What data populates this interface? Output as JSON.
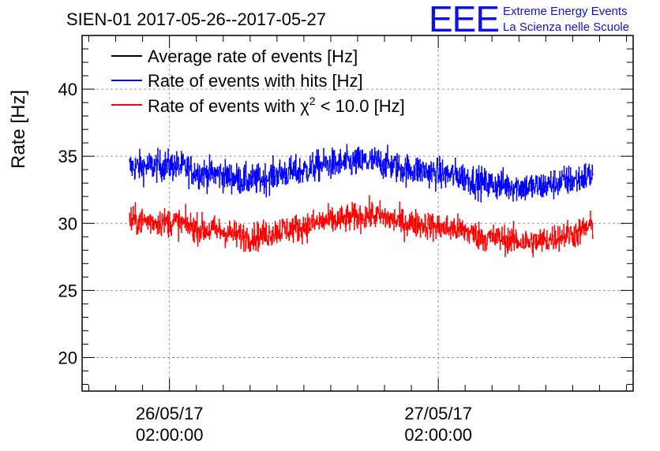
{
  "chart_data": {
    "type": "line",
    "title": "SIEN-01 2017-05-26--2017-05-27",
    "ylabel": "Rate [Hz]",
    "xlabel": "",
    "ylim": [
      17.5,
      44
    ],
    "yticks": [
      20,
      25,
      30,
      35,
      40
    ],
    "ytick_labels": [
      "20",
      "25",
      "30",
      "35",
      "40"
    ],
    "xlim_hours": [
      -4.5,
      36.5
    ],
    "xticks_hours": [
      2,
      22
    ],
    "xtick_labels": [
      {
        "date": "26/05/17",
        "time": "02:00:00"
      },
      {
        "date": "27/05/17",
        "time": "02:00:00"
      }
    ],
    "x_range_hours": [
      -1.0,
      33.5
    ],
    "grid": true,
    "legend_position": "top-left",
    "series": [
      {
        "name": "Average rate of events [Hz]",
        "color": "#000000",
        "trend_hours": [],
        "trend_values": [],
        "noise": 0
      },
      {
        "name": "Rate of events with hits [Hz]",
        "color": "#0000ff",
        "trend_hours": [
          -1,
          2,
          5,
          8,
          11,
          14,
          17,
          20,
          23,
          26,
          29,
          32,
          33.5
        ],
        "trend_values": [
          34.2,
          34.3,
          33.7,
          33.2,
          33.8,
          34.4,
          34.6,
          34.0,
          33.6,
          32.9,
          32.7,
          33.2,
          33.6
        ],
        "noise": 1.1
      },
      {
        "name": "Rate of events with χ² < 10.0 [Hz]",
        "name_prefix": "Rate of events with ",
        "name_symbol": "χ",
        "name_sup": "2",
        "name_suffix": " < 10.0 [Hz]",
        "color": "#ff0000",
        "trend_hours": [
          -1,
          2,
          5,
          8,
          11,
          14,
          17,
          20,
          23,
          26,
          29,
          32,
          33.5
        ],
        "trend_values": [
          30.2,
          30.1,
          29.5,
          29.0,
          29.6,
          30.2,
          30.6,
          30.0,
          29.6,
          28.9,
          28.6,
          29.2,
          29.8
        ],
        "noise": 1.0
      }
    ]
  },
  "logo": {
    "mark": "EEE",
    "line1": "Extreme Energy Events",
    "line2": "La Scienza nelle Scuole",
    "color": "#1010e0"
  }
}
